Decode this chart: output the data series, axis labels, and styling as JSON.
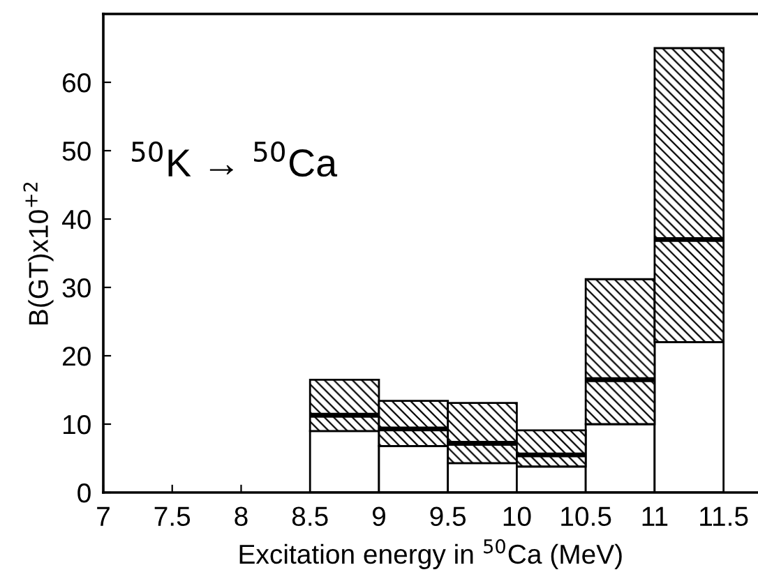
{
  "chart_data": {
    "type": "bar",
    "xlabel": "Excitation energy in $^{50}$Ca (MeV)",
    "ylabel": "B(GT)x10$^{+2}$",
    "annotations": [
      "$^{50}$K → $^{50}$Ca"
    ],
    "x": [
      8.75,
      9.25,
      9.75,
      10.25,
      10.75,
      11.25
    ],
    "stacked": true,
    "series": [
      {
        "color": "#ffffff",
        "values": [
          9,
          6.8,
          4.3,
          3.8,
          10,
          22
        ]
      },
      {
        "color": "#000000",
        "values": [
          7.5,
          6.6,
          8.8,
          5.3,
          21.2,
          43
        ]
      },
      {
        "type": "line",
        "color": "#000000",
        "x": [
          8.5,
          9
        ],
        "values": [
          11.3,
          11.3
        ]
      },
      {
        "type": "line",
        "color": "#000000",
        "x": [
          9,
          9.5
        ],
        "values": [
          9.3,
          9.3
        ]
      },
      {
        "type": "line",
        "color": "#000000",
        "x": [
          9.5,
          10
        ],
        "values": [
          7.2,
          7.2
        ]
      },
      {
        "type": "line",
        "color": "#000000",
        "x": [
          10,
          10.5
        ],
        "values": [
          5.5,
          5.5
        ]
      },
      {
        "type": "line",
        "color": "#000000",
        "x": [
          10.5,
          11
        ],
        "values": [
          16.5,
          16.5
        ]
      },
      {
        "type": "line",
        "color": "#000000",
        "x": [
          11,
          11.5
        ],
        "values": [
          37,
          37
        ]
      }
    ],
    "xlim": [
      7,
      11.75
    ],
    "xticks": [
      7,
      7.5,
      8,
      8.5,
      9,
      9.5,
      10,
      10.5,
      11,
      11.5
    ],
    "ylim": [
      0,
      70
    ],
    "yticks": [
      0,
      10,
      20,
      30,
      40,
      50,
      60
    ],
    "grid": false
  }
}
